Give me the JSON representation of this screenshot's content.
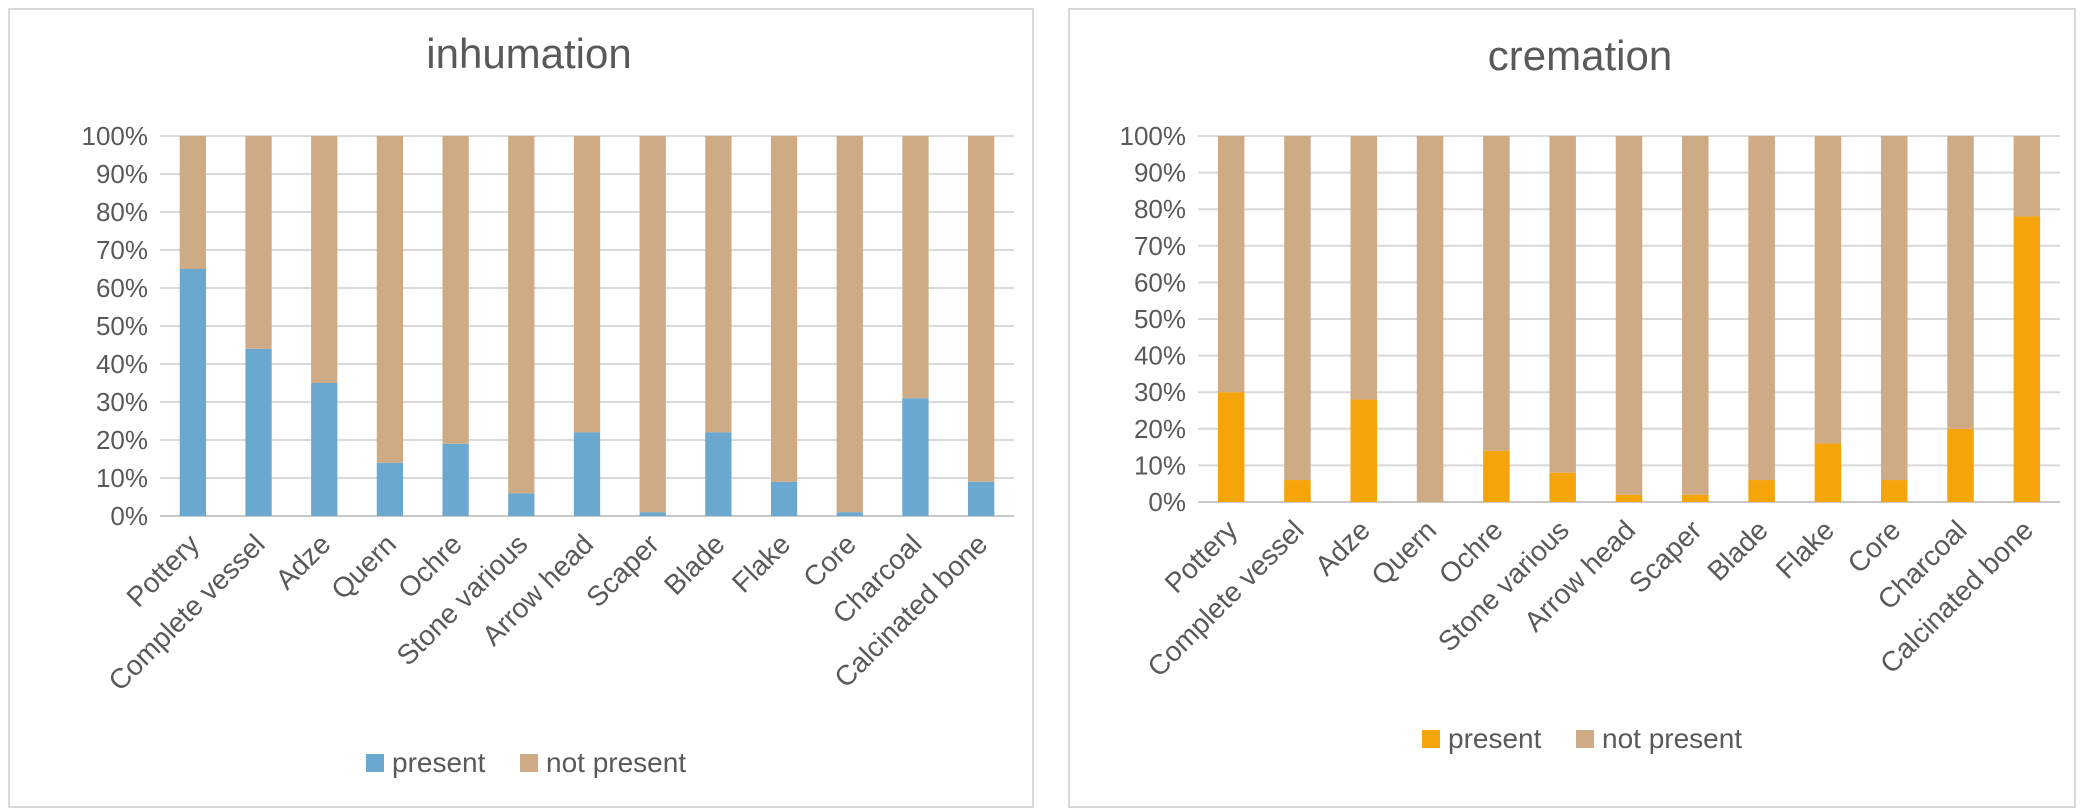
{
  "chart_data": [
    {
      "type": "bar",
      "stacked": true,
      "percent_stacked": true,
      "title": "inhumation",
      "categories": [
        "Pottery",
        "Complete vessel",
        "Adze",
        "Quern",
        "Ochre",
        "Stone various",
        "Arrow head",
        "Scaper",
        "Blade",
        "Flake",
        "Core",
        "Charcoal",
        "Calcinated bone"
      ],
      "series": [
        {
          "name": "present",
          "color": "#6aa8cf",
          "values": [
            65,
            44,
            35,
            14,
            19,
            6,
            22,
            1,
            22,
            9,
            1,
            31,
            9
          ]
        },
        {
          "name": "not present",
          "color": "#cfab85",
          "values": [
            35,
            56,
            65,
            86,
            81,
            94,
            78,
            99,
            78,
            91,
            99,
            69,
            91
          ]
        }
      ],
      "yticks": [
        "0%",
        "10%",
        "20%",
        "30%",
        "40%",
        "50%",
        "60%",
        "70%",
        "80%",
        "90%",
        "100%"
      ],
      "ylim": [
        0,
        100
      ],
      "grid": true,
      "legend_position": "bottom"
    },
    {
      "type": "bar",
      "stacked": true,
      "percent_stacked": true,
      "title": "cremation",
      "categories": [
        "Pottery",
        "Complete vessel",
        "Adze",
        "Quern",
        "Ochre",
        "Stone various",
        "Arrow head",
        "Scaper",
        "Blade",
        "Flake",
        "Core",
        "Charcoal",
        "Calcinated bone"
      ],
      "series": [
        {
          "name": "present",
          "color": "#f5a50a",
          "values": [
            30,
            6,
            28,
            0,
            14,
            8,
            2,
            2,
            6,
            16,
            6,
            20,
            78
          ]
        },
        {
          "name": "not present",
          "color": "#cfab85",
          "values": [
            70,
            94,
            72,
            100,
            86,
            92,
            98,
            98,
            94,
            84,
            94,
            80,
            22
          ]
        }
      ],
      "yticks": [
        "0%",
        "10%",
        "20%",
        "30%",
        "40%",
        "50%",
        "60%",
        "70%",
        "80%",
        "90%",
        "100%"
      ],
      "ylim": [
        0,
        100
      ],
      "grid": true,
      "legend_position": "bottom"
    }
  ]
}
